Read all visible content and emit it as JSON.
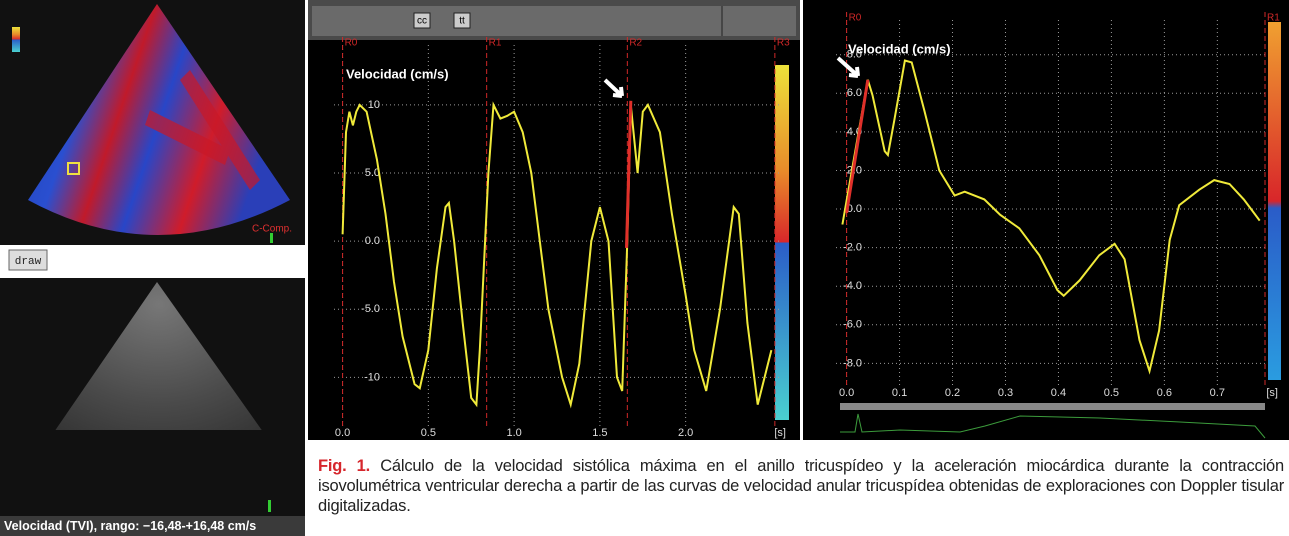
{
  "figure": {
    "color_doppler_label": "C-Comp.",
    "draw_button": "draw",
    "tvi_caption": "Velocidad (TVI), rango: −16,48-+16,48 cm/s",
    "toolbar": [
      "cc",
      "tt"
    ],
    "caption": {
      "label": "Fig. 1.",
      "text": "Cálculo de la velocidad sistólica máxima en el anillo tricuspídeo y la aceleración miocárdica durante la contracción isovolumétrica ventricular derecha a partir de las curvas de velocidad anular tricuspídea obtenidas de exploraciones con Doppler tisular digitalizadas."
    }
  },
  "chart_data": [
    {
      "type": "line",
      "y_label": "Velocidad (cm/s)",
      "x_label": "[s]",
      "xlim": [
        -0.05,
        2.55
      ],
      "ylim": [
        -14.6,
        14.4
      ],
      "grid": true,
      "xticks": [
        {
          "value": 0,
          "label": "0.0"
        },
        0.5,
        {
          "value": 1,
          "label": "1.0"
        },
        1.5,
        {
          "value": 2,
          "label": "2.0"
        }
      ],
      "yticks": [
        10,
        {
          "value": 5,
          "label": "5.0"
        },
        {
          "value": 0,
          "label": "0.0"
        },
        {
          "value": -5,
          "label": "-5.0"
        },
        -10
      ],
      "markers": [
        {
          "label": "R0",
          "x": 0
        },
        {
          "label": "R1",
          "x": 0.84
        },
        {
          "label": "R2",
          "x": 1.66
        },
        {
          "label": "R3",
          "x": 2.52
        }
      ],
      "series": [
        {
          "color": "#f0ea3a",
          "x": [
            0,
            0.02,
            0.04,
            0.06,
            0.08,
            0.1,
            0.14,
            0.2,
            0.25,
            0.3,
            0.35,
            0.42,
            0.45,
            0.5,
            0.55,
            0.6,
            0.62,
            0.65,
            0.7,
            0.75,
            0.78,
            0.8,
            0.85,
            0.88,
            0.92,
            0.96,
            1.0,
            1.05,
            1.1,
            1.15,
            1.2,
            1.28,
            1.33,
            1.38,
            1.45,
            1.5,
            1.55,
            1.6,
            1.63,
            1.66,
            1.68,
            1.72,
            1.75,
            1.78,
            1.85,
            1.92,
            2.0,
            2.05,
            2.12,
            2.2,
            2.28,
            2.31,
            2.36,
            2.42,
            2.46,
            2.5
          ],
          "values": [
            0.5,
            8,
            9.5,
            8.5,
            9.5,
            10,
            9.5,
            6,
            2,
            -3,
            -7,
            -10.5,
            -10.8,
            -8,
            -2,
            2.5,
            2.8,
            0,
            -6,
            -11.5,
            -12,
            -8,
            5,
            10,
            9,
            9.2,
            9.5,
            8,
            5,
            0,
            -5,
            -10,
            -12,
            -9,
            0,
            2.5,
            0,
            -10,
            -11,
            0,
            10,
            5,
            9.5,
            10,
            8,
            2,
            -4,
            -8,
            -11,
            -5,
            2.5,
            2,
            -6,
            -12,
            -10,
            -8
          ]
        },
        {
          "color": "#e0302a",
          "x": [
            1.655,
            1.68
          ],
          "values": [
            -0.5,
            10.3
          ]
        }
      ]
    },
    {
      "type": "line",
      "y_label": "Velocidad (cm/s)",
      "x_label": "[s]",
      "xlim": [
        -0.02,
        0.79
      ],
      "ylim": [
        -9.9,
        9.8
      ],
      "grid": true,
      "xticks": [
        {
          "value": 0,
          "label": "0.0"
        },
        0.1,
        0.2,
        0.3,
        0.4,
        0.5,
        0.6,
        0.7
      ],
      "yticks": [
        {
          "value": 8,
          "label": "8.0"
        },
        {
          "value": 6,
          "label": "6.0"
        },
        {
          "value": 4,
          "label": "4.0"
        },
        {
          "value": 2,
          "label": "2.0"
        },
        {
          "value": 0,
          "label": "0.0"
        },
        {
          "value": -2,
          "label": "-2.0"
        },
        {
          "value": -4,
          "label": "-4.0"
        },
        {
          "value": -6,
          "label": "-6.0"
        },
        {
          "value": -8,
          "label": "-8.0"
        }
      ],
      "markers": [
        {
          "label": "R0",
          "x": 0
        },
        {
          "label": "R1",
          "x": 0.79
        }
      ],
      "series": [
        {
          "color": "#f0ea3a",
          "x": [
            -0.008,
            0.04,
            0.049,
            0.072,
            0.078,
            0.09,
            0.11,
            0.123,
            0.147,
            0.175,
            0.204,
            0.223,
            0.26,
            0.29,
            0.326,
            0.364,
            0.398,
            0.41,
            0.44,
            0.477,
            0.506,
            0.525,
            0.553,
            0.572,
            0.59,
            0.61,
            0.628,
            0.666,
            0.694,
            0.723,
            0.75,
            0.78
          ],
          "values": [
            -0.8,
            6.7,
            5.9,
            3.0,
            2.8,
            4.6,
            7.7,
            7.6,
            5.1,
            2.0,
            0.7,
            0.9,
            0.5,
            -0.3,
            -1.0,
            -2.4,
            -4.2,
            -4.5,
            -3.7,
            -2.4,
            -1.8,
            -2.6,
            -6.8,
            -8.4,
            -6.3,
            -1.6,
            0.2,
            1.0,
            1.5,
            1.3,
            0.5,
            -0.6
          ]
        },
        {
          "color": "#e0302a",
          "x": [
            0,
            0.04
          ],
          "values": [
            -0.2,
            6.7
          ]
        }
      ]
    }
  ]
}
